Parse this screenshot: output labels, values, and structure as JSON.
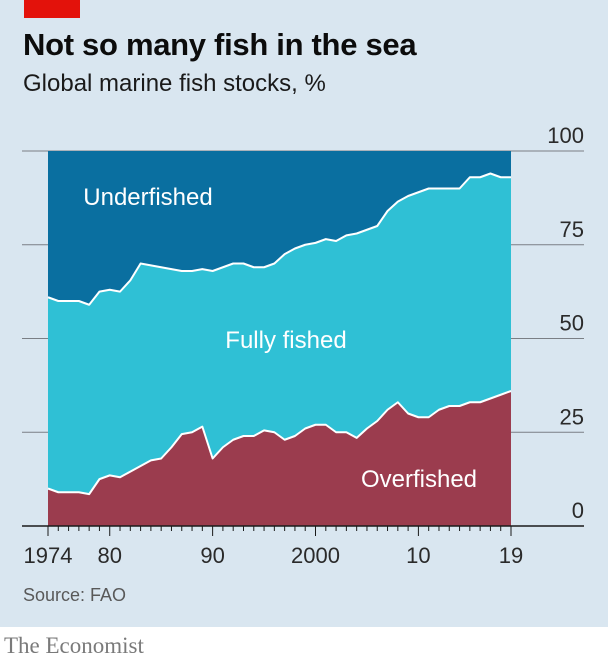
{
  "header": {
    "title": "Not so many fish in the sea",
    "subtitle": "Global marine fish stocks, %"
  },
  "footer": {
    "source": "Source: FAO",
    "brand": "The Economist"
  },
  "colors": {
    "overfished": "#9b3c4e",
    "fully_fished": "#2fc0d5",
    "underfished": "#0a6fa0",
    "accent_tab": "#e3120b",
    "background": "#d9e6f0"
  },
  "chart_data": {
    "type": "area",
    "stacked": true,
    "title": "Not so many fish in the sea",
    "subtitle": "Global marine fish stocks, %",
    "x": [
      1974,
      1975,
      1976,
      1977,
      1978,
      1979,
      1980,
      1981,
      1982,
      1983,
      1984,
      1985,
      1986,
      1987,
      1988,
      1989,
      1990,
      1991,
      1992,
      1993,
      1994,
      1995,
      1996,
      1997,
      1998,
      1999,
      2000,
      2001,
      2002,
      2003,
      2004,
      2005,
      2006,
      2007,
      2008,
      2009,
      2010,
      2011,
      2012,
      2013,
      2014,
      2015,
      2016,
      2017,
      2018,
      2019
    ],
    "xlim": [
      1974,
      2019
    ],
    "ylim": [
      0,
      100
    ],
    "x_ticks": [
      {
        "value": 1974,
        "label": "1974"
      },
      {
        "value": 1980,
        "label": "80"
      },
      {
        "value": 1990,
        "label": "90"
      },
      {
        "value": 2000,
        "label": "2000"
      },
      {
        "value": 2010,
        "label": "10"
      },
      {
        "value": 2019,
        "label": "19"
      }
    ],
    "y_ticks": [
      {
        "value": 0,
        "label": "0"
      },
      {
        "value": 25,
        "label": "25"
      },
      {
        "value": 50,
        "label": "50"
      },
      {
        "value": 75,
        "label": "75"
      },
      {
        "value": 100,
        "label": "100"
      }
    ],
    "y_axis_side": "right",
    "grid": "horizontal",
    "series": [
      {
        "name": "Overfished",
        "values": [
          10,
          9,
          9,
          9,
          8.5,
          12.5,
          13.5,
          13,
          14.5,
          16,
          17.5,
          18,
          21,
          24.5,
          25,
          26.5,
          18,
          21,
          23,
          24,
          24,
          25.5,
          25,
          23,
          24,
          26,
          27,
          27,
          25,
          25,
          23.5,
          26,
          28,
          31,
          33,
          30,
          29,
          29,
          31,
          32,
          32,
          33,
          33,
          34,
          35,
          36
        ]
      },
      {
        "name": "Fully fished",
        "values": [
          51,
          51,
          51,
          51,
          50.5,
          50,
          49.5,
          49.5,
          51,
          54,
          52,
          51,
          47.5,
          43.5,
          43,
          42,
          50,
          48,
          47,
          46,
          45,
          43.5,
          45,
          49.5,
          50,
          49,
          48.5,
          49.5,
          51,
          52.5,
          54.5,
          53,
          52,
          53,
          53.5,
          58,
          60,
          61,
          59,
          58,
          58,
          60,
          60,
          60,
          58,
          57
        ]
      },
      {
        "name": "Underfished",
        "values": [
          39,
          40,
          40,
          40,
          41,
          37.5,
          37,
          37.5,
          34.5,
          30,
          30.5,
          31,
          31.5,
          32,
          32,
          31.5,
          32,
          31,
          30,
          30,
          31,
          31,
          30,
          27.5,
          26,
          25,
          24.5,
          23.5,
          24,
          22.5,
          22,
          21,
          20,
          16,
          13.5,
          12,
          11,
          10,
          10,
          10,
          10,
          7,
          7,
          6,
          7,
          7
        ]
      }
    ],
    "annotations": [
      "Underfished",
      "Fully fished",
      "Overfished"
    ]
  }
}
